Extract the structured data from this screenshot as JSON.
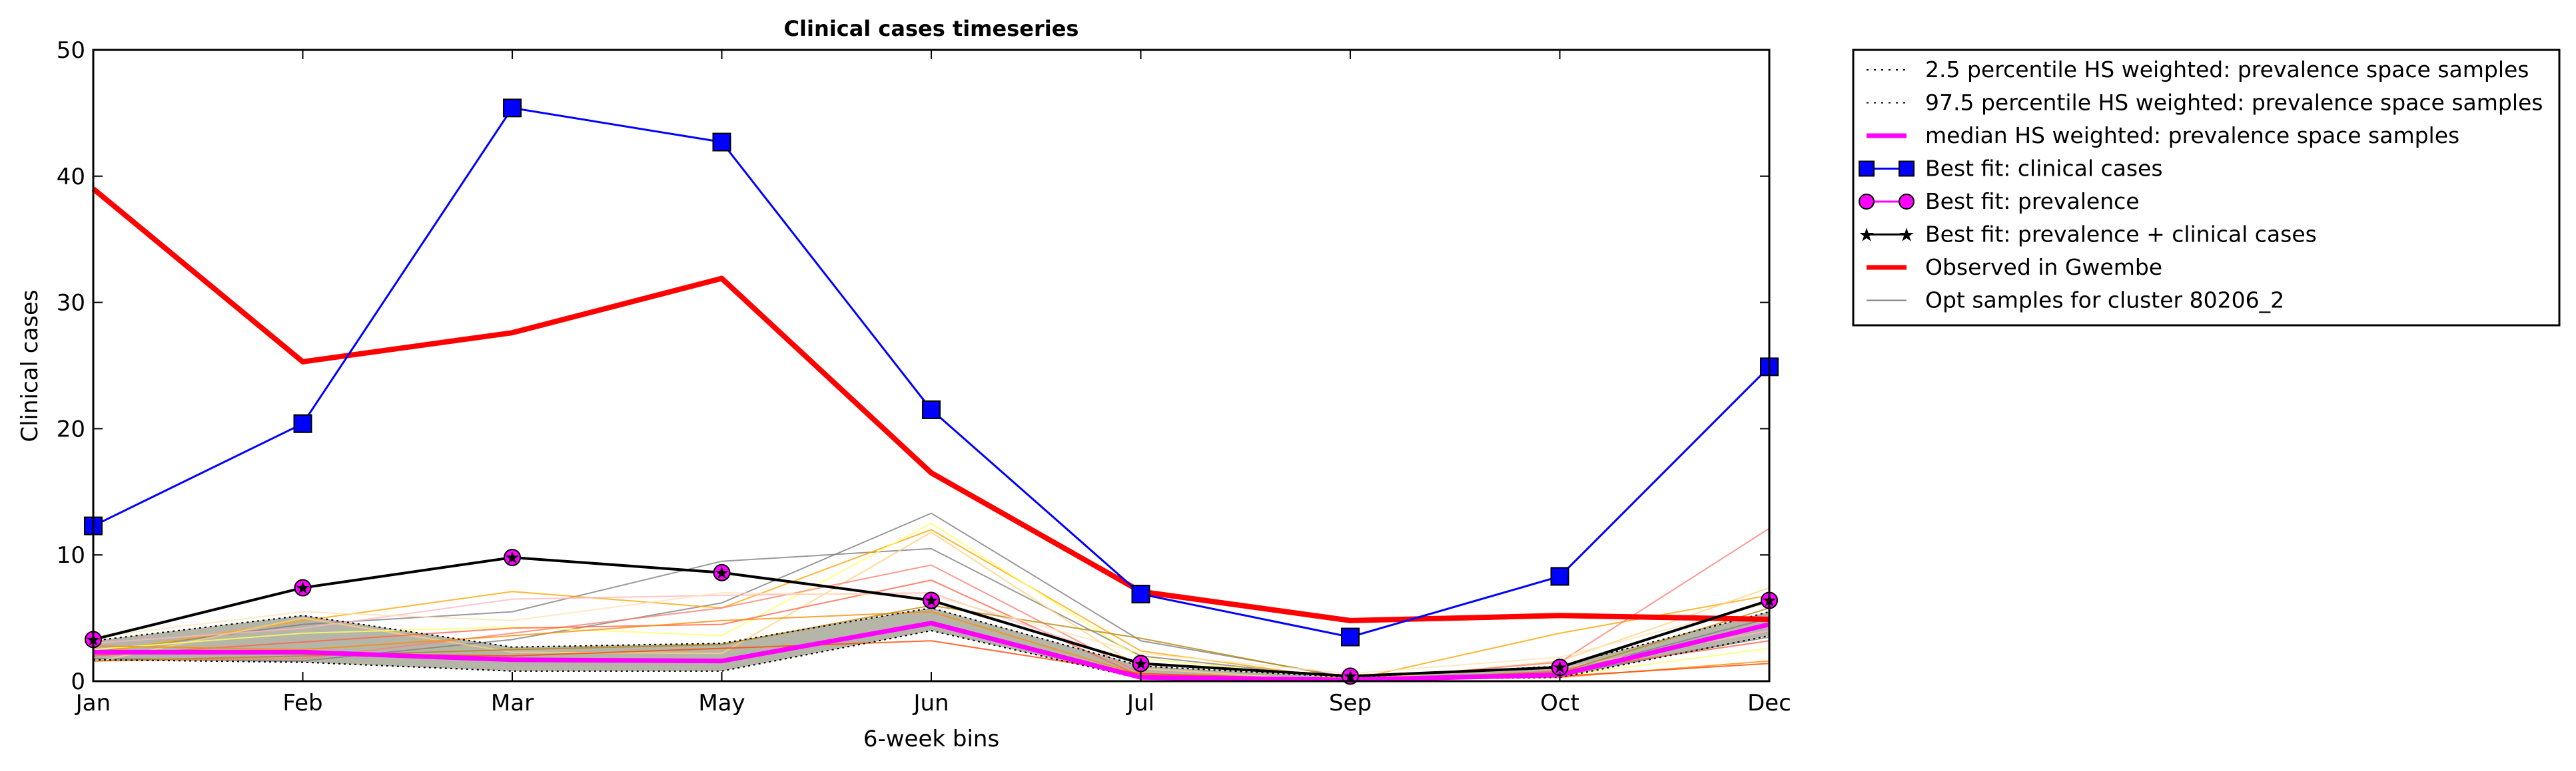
{
  "chart_data": {
    "type": "line",
    "title": "Clinical cases timeseries",
    "xlabel": "6-week bins",
    "ylabel": "Clinical cases",
    "categories": [
      "Jan",
      "Feb",
      "Mar",
      "May",
      "Jun",
      "Jul",
      "Sep",
      "Oct",
      "Dec"
    ],
    "ylim": [
      0,
      50
    ],
    "yticks": [
      "0",
      "10",
      "20",
      "30",
      "40",
      "50"
    ],
    "grid": false,
    "legend_position": "outside-right",
    "series": [
      {
        "name": "2.5 percentile HS weighted: prevalence space samples",
        "style": "dotted",
        "color": "#000000",
        "values": [
          1.7,
          1.5,
          0.8,
          0.8,
          4.0,
          0.2,
          0.1,
          0.3,
          3.6
        ]
      },
      {
        "name": "97.5 percentile HS weighted: prevalence space samples",
        "style": "dotted",
        "color": "#000000",
        "values": [
          3.2,
          5.2,
          2.7,
          3.0,
          5.8,
          1.2,
          0.3,
          1.2,
          5.5
        ]
      },
      {
        "name": "median HS weighted: prevalence space samples",
        "style": "solid",
        "color": "#ff00ff",
        "values": [
          2.3,
          2.3,
          1.7,
          1.6,
          4.6,
          0.3,
          0.1,
          0.5,
          4.5
        ]
      },
      {
        "name": "Best fit: clinical cases",
        "style": "line-square",
        "color": "#0000ff",
        "values": [
          12.3,
          20.4,
          45.4,
          42.7,
          21.5,
          6.9,
          3.5,
          8.3,
          24.9
        ]
      },
      {
        "name": "Best fit: prevalence",
        "style": "line-circle",
        "color": "#ff00ff",
        "values": [
          3.3,
          7.4,
          9.8,
          8.6,
          6.4,
          1.4,
          0.4,
          1.1,
          6.4
        ]
      },
      {
        "name": "Best fit: prevalence + clinical cases",
        "style": "line-star",
        "color": "#000000",
        "values": [
          3.3,
          7.4,
          9.8,
          8.6,
          6.4,
          1.4,
          0.4,
          1.1,
          6.4
        ]
      },
      {
        "name": "Observed in Gwembe",
        "style": "thick",
        "color": "#ff0000",
        "values": [
          39.0,
          25.3,
          27.6,
          31.9,
          16.5,
          7.1,
          4.8,
          5.2,
          4.9
        ]
      },
      {
        "name": "Opt samples for cluster 80206_2",
        "style": "thin",
        "color": "#808080",
        "values": [
          2.0,
          1.4,
          5.5,
          9.5,
          10.5,
          2.0,
          0.2,
          0.8,
          5.0
        ]
      }
    ],
    "sample_lines": [
      {
        "color": "#808080",
        "values": [
          2.3,
          4.5,
          5.5,
          9.5,
          10.5,
          2.0,
          0.2,
          0.6,
          5.0
        ]
      },
      {
        "color": "#808080",
        "values": [
          1.8,
          1.6,
          3.3,
          6.2,
          13.3,
          3.2,
          0.3,
          0.5,
          3.5
        ]
      },
      {
        "color": "#ffa500",
        "values": [
          2.2,
          4.8,
          7.1,
          5.8,
          12.0,
          2.4,
          0.1,
          3.8,
          6.8
        ]
      },
      {
        "color": "#ffd27f",
        "values": [
          1.5,
          5.0,
          2.3,
          2.2,
          11.8,
          1.0,
          0.0,
          1.6,
          7.4
        ]
      },
      {
        "color": "#ffff66",
        "values": [
          2.5,
          3.8,
          4.3,
          3.6,
          12.5,
          1.8,
          0.2,
          0.4,
          2.6
        ]
      },
      {
        "color": "#fa8072",
        "values": [
          1.6,
          1.8,
          3.8,
          5.8,
          9.2,
          0.6,
          0.1,
          1.5,
          12.1
        ]
      },
      {
        "color": "#ff6347",
        "values": [
          2.0,
          3.1,
          4.2,
          4.5,
          8.0,
          0.4,
          0.0,
          0.8,
          3.2
        ]
      },
      {
        "color": "#ff8c00",
        "values": [
          2.8,
          2.5,
          3.6,
          4.8,
          5.5,
          0.5,
          0.1,
          0.3,
          1.6
        ]
      },
      {
        "color": "#ffb6c1",
        "values": [
          3.0,
          4.2,
          6.5,
          6.8,
          7.0,
          1.3,
          0.5,
          1.0,
          4.0
        ]
      },
      {
        "color": "#b8860b",
        "values": [
          1.6,
          2.0,
          2.5,
          2.9,
          6.0,
          3.4,
          0.2,
          0.7,
          5.8
        ]
      },
      {
        "color": "#ff4500",
        "values": [
          2.2,
          2.2,
          2.0,
          2.6,
          3.2,
          0.6,
          0.1,
          0.4,
          1.4
        ]
      },
      {
        "color": "#ffe4b5",
        "values": [
          3.5,
          5.5,
          4.8,
          7.0,
          6.8,
          2.2,
          0.6,
          1.9,
          6.2
        ]
      }
    ]
  }
}
